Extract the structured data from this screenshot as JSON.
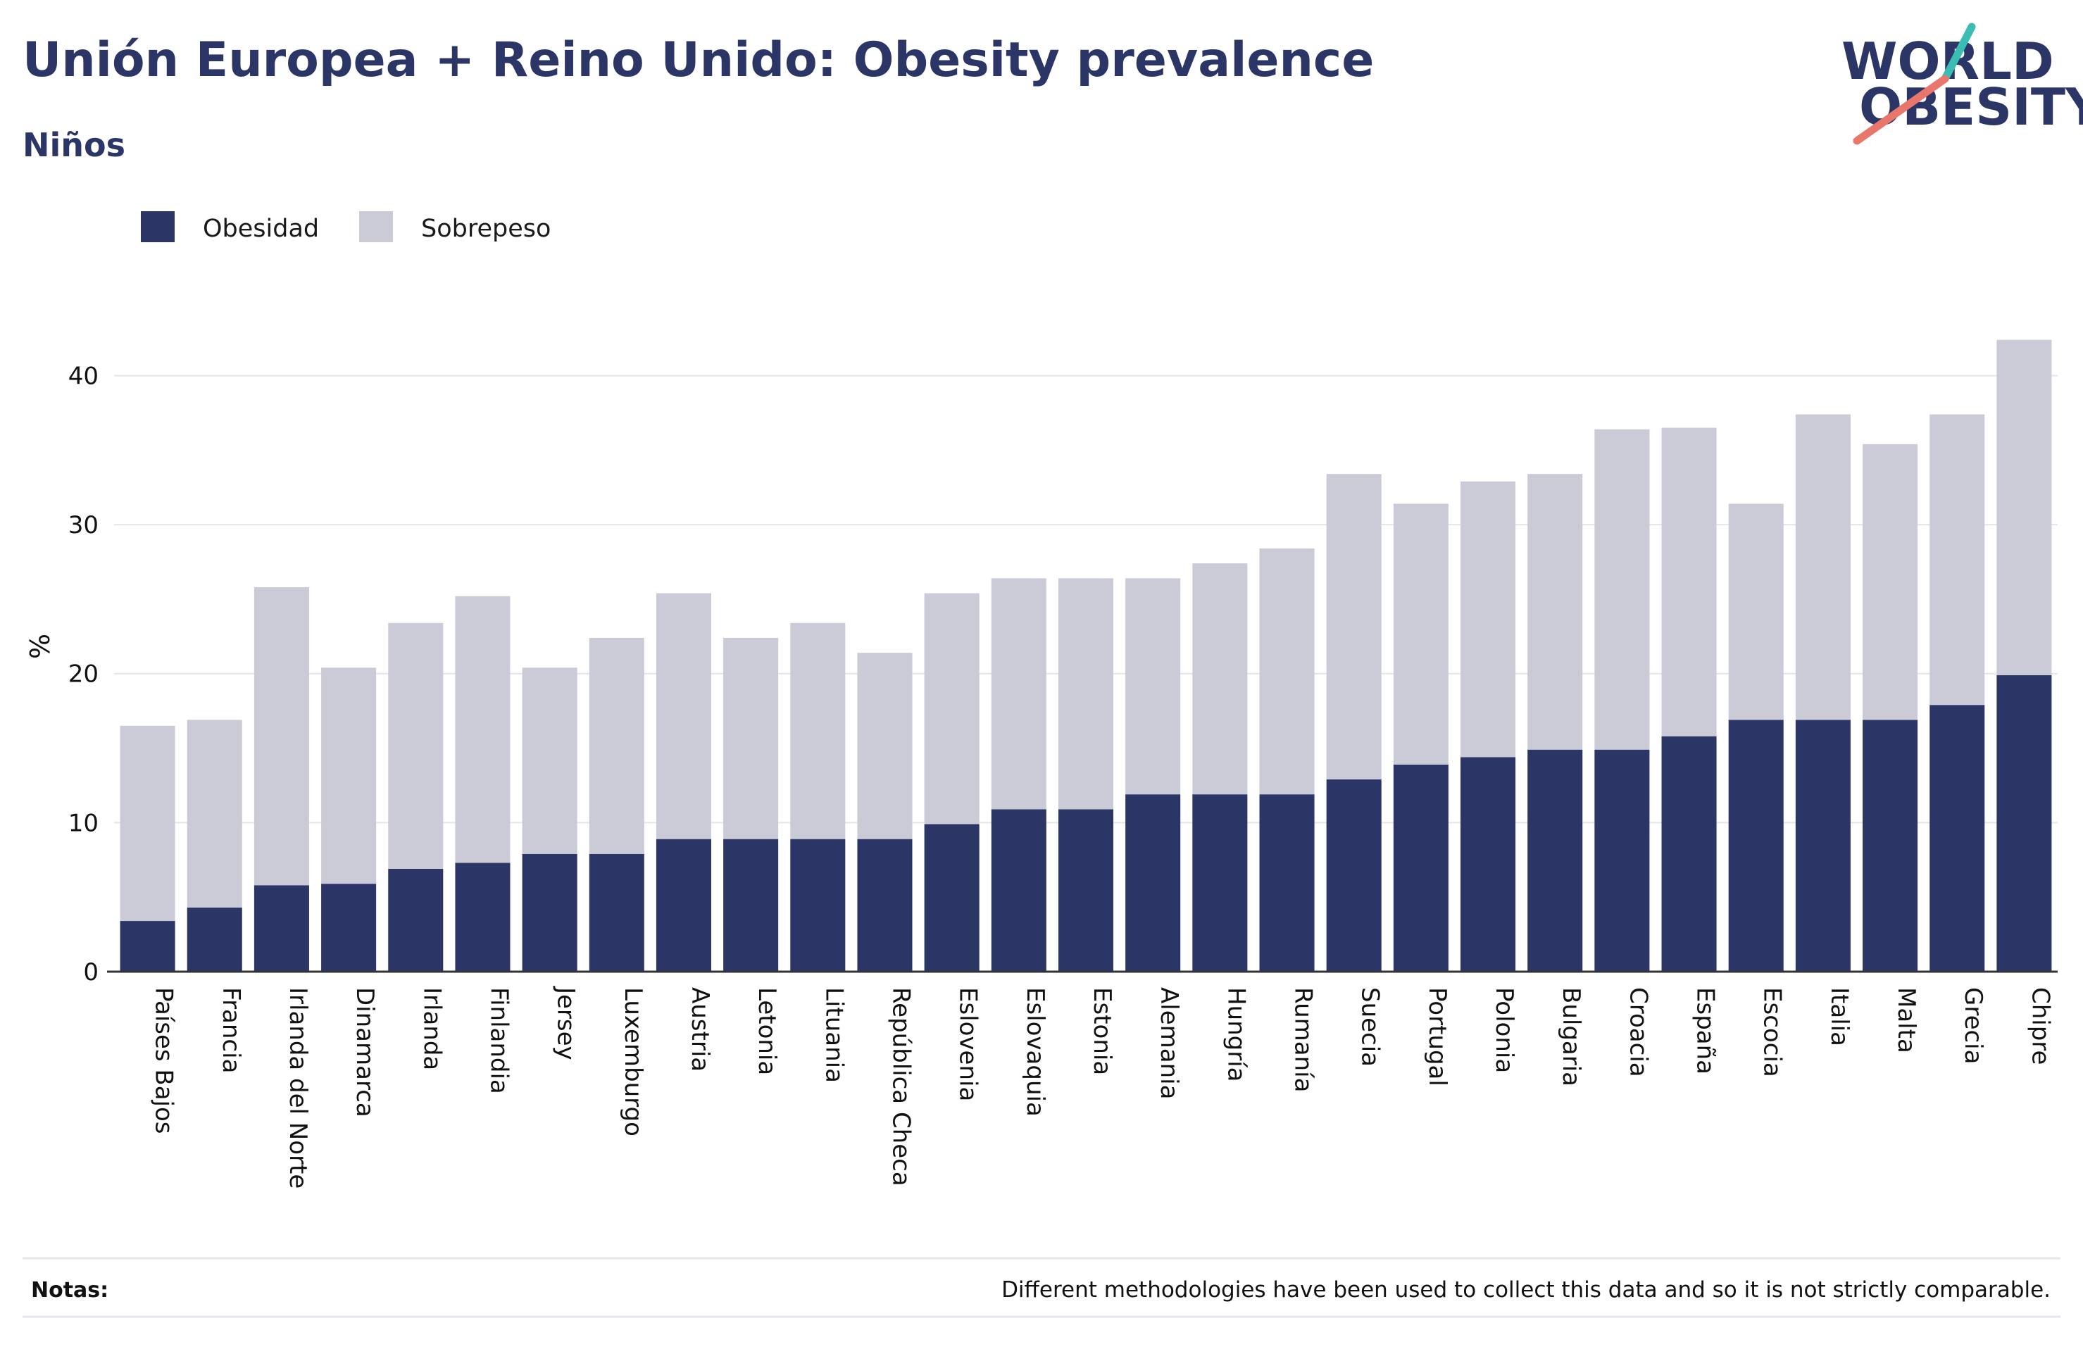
{
  "header": {
    "title": "Unión Europea + Reino Unido: Obesity prevalence",
    "subtitle": "Niños"
  },
  "logo": {
    "line1": "WORLD",
    "line2": "OBESITY"
  },
  "legend": [
    {
      "label": "Obesidad",
      "color": "#2b3666"
    },
    {
      "label": "Sobrepeso",
      "color": "#cacbd6"
    }
  ],
  "notes": {
    "label": "Notas:",
    "text": "Different methodologies have been used to collect this data and so it is not strictly comparable."
  },
  "colors": {
    "obesity": "#2b3666",
    "overweight": "#cacbd6",
    "title": "#2b3666",
    "logo_slash_top": "#3bbdb6",
    "logo_slash_bottom": "#e8766a"
  },
  "chart_data": {
    "type": "bar",
    "stacked": true,
    "ylabel": "%",
    "ylim": [
      0,
      43
    ],
    "yticks": [
      0,
      10,
      20,
      30,
      40
    ],
    "grid": true,
    "legend_position": "top-left",
    "categories": [
      "Países Bajos",
      "Francia",
      "Irlanda del Norte",
      "Dinamarca",
      "Irlanda",
      "Finlandia",
      "Jersey",
      "Luxemburgo",
      "Austria",
      "Letonia",
      "Lituania",
      "República Checa",
      "Eslovenia",
      "Eslovaquia",
      "Estonia",
      "Alemania",
      "Hungría",
      "Rumanía",
      "Suecia",
      "Portugal",
      "Polonia",
      "Bulgaria",
      "Croacia",
      "España",
      "Escocia",
      "Italia",
      "Malta",
      "Grecia",
      "Chipre"
    ],
    "series": [
      {
        "name": "Obesidad",
        "values": [
          3.4,
          4.3,
          5.8,
          5.9,
          6.9,
          7.3,
          7.9,
          7.9,
          8.9,
          8.9,
          8.9,
          8.9,
          9.9,
          10.9,
          10.9,
          11.9,
          11.9,
          11.9,
          12.9,
          13.9,
          14.4,
          14.9,
          14.9,
          15.8,
          16.9,
          16.9,
          16.9,
          17.9,
          19.9
        ]
      },
      {
        "name": "Sobrepeso",
        "values": [
          13.1,
          12.6,
          20.0,
          14.5,
          16.5,
          17.9,
          12.5,
          14.5,
          16.5,
          13.5,
          14.5,
          12.5,
          15.5,
          15.5,
          15.5,
          14.5,
          15.5,
          16.5,
          20.5,
          17.5,
          18.5,
          18.5,
          21.5,
          20.7,
          14.5,
          20.5,
          18.5,
          19.5,
          22.5
        ]
      }
    ]
  }
}
